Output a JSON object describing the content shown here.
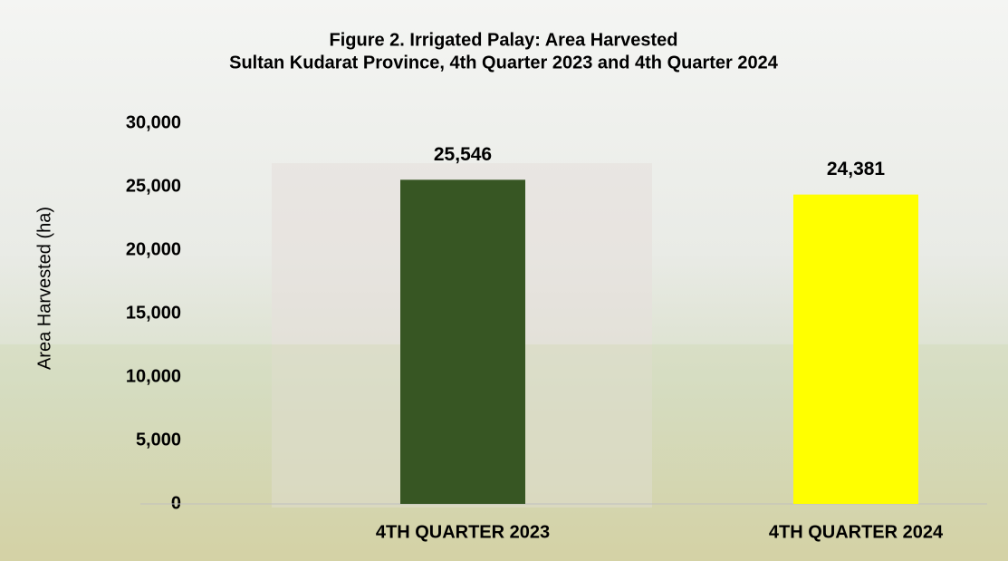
{
  "chart_data": {
    "type": "bar",
    "title": "Figure 2. Irrigated Palay: Area Harvested",
    "subtitle": "Sultan Kudarat Province, 4th Quarter 2023 and 4th Quarter 2024",
    "y_label": "Area Harvested (ha)",
    "categories": [
      "4TH QUARTER 2023",
      "4TH QUARTER 2024"
    ],
    "values": [
      25546,
      24381
    ],
    "value_labels": [
      "25,546",
      "24,381"
    ],
    "colors": [
      "#375623",
      "#ffff00"
    ],
    "ylim": [
      0,
      30000
    ],
    "yticks": [
      0,
      {
        "value": 5000,
        "label": "5,000"
      },
      {
        "value": 10000,
        "label": "10,000"
      },
      {
        "value": 15000,
        "label": "15,000"
      },
      {
        "value": 20000,
        "label": "20,000"
      },
      {
        "value": 25000,
        "label": "25,000"
      },
      {
        "value": 30000,
        "label": "30,000"
      }
    ],
    "grid": false
  }
}
